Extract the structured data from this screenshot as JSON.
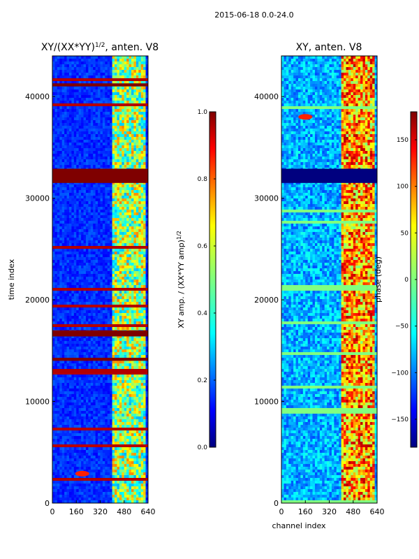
{
  "suptitle": "2015-06-18 0.0-24.0",
  "chart_data": [
    {
      "type": "heatmap",
      "title_main": "XY/(XX*YY)",
      "title_sup": "1/2",
      "title_tail": ", anten. V8",
      "xlabel": "",
      "ylabel": "time index",
      "xlim": [
        0,
        640
      ],
      "ylim": [
        0,
        44000
      ],
      "xticks": [
        0,
        160,
        320,
        480,
        640
      ],
      "yticks": [
        0,
        10000,
        20000,
        30000,
        40000
      ],
      "colorbar": {
        "label_main": "XY amp. / (XX*YY amp)",
        "label_sup": "1/2",
        "range": [
          0.0,
          1.0
        ],
        "ticks": [
          "0.0",
          "0.2",
          "0.4",
          "0.6",
          "0.8",
          "1.0"
        ],
        "colormap": "jet"
      },
      "features": {
        "flagged_full_rows": [
          [
            31500,
            32900
          ],
          [
            16400,
            17000
          ],
          [
            14000,
            14300
          ],
          [
            41000,
            41300
          ]
        ],
        "active_channel_band": [
          400,
          620
        ],
        "hot_spot": {
          "channel": 200,
          "time": 2900
        }
      }
    },
    {
      "type": "heatmap",
      "title_main": "XY, anten. V8",
      "xlabel": "channel index",
      "ylabel": "",
      "xlim": [
        0,
        640
      ],
      "ylim": [
        0,
        44000
      ],
      "xticks": [
        0,
        160,
        320,
        480,
        640
      ],
      "yticks": [
        0,
        10000,
        20000,
        30000,
        40000
      ],
      "colorbar": {
        "label_main": "phase (deg)",
        "range": [
          -180,
          180
        ],
        "ticks": [
          "150",
          "100",
          "50",
          "0",
          "−50",
          "−100",
          "−150"
        ],
        "colormap": "jet"
      },
      "features": {
        "flagged_full_rows": [
          [
            31500,
            32900
          ]
        ],
        "active_channel_band": [
          400,
          620
        ],
        "hot_spot": {
          "channel": 160,
          "time": 38000
        }
      }
    }
  ],
  "axis_tick_labels": {
    "y": [
      "0",
      "10000",
      "20000",
      "30000",
      "40000"
    ],
    "x": [
      "0",
      "160",
      "320",
      "480",
      "640"
    ]
  },
  "colors": {
    "jet_low": "#00007f",
    "jet_mid": "#7fff7f",
    "jet_high": "#7f0000",
    "background": "#ffffff"
  }
}
